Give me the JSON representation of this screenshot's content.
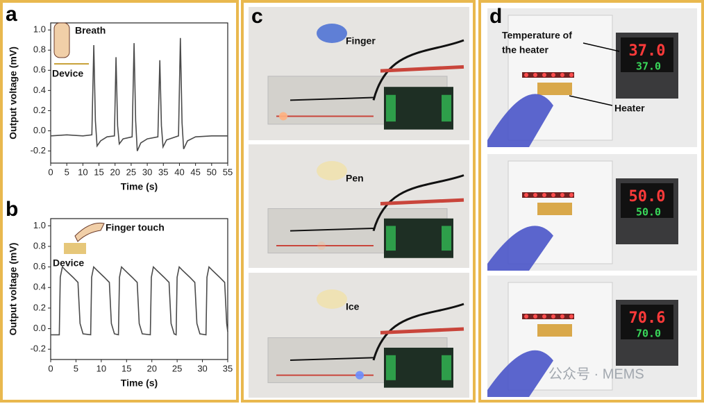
{
  "chart_data": [
    {
      "type": "line",
      "panel_label": "a",
      "x_label": "Time (s)",
      "y_label": "Output voltage (mV)",
      "annotations": [
        "Breath",
        "Device"
      ],
      "xlim": [
        0,
        55
      ],
      "xticks": [
        0,
        5,
        10,
        15,
        20,
        25,
        30,
        35,
        40,
        45,
        50,
        55
      ],
      "ylim": [
        -0.32,
        1.07
      ],
      "yticks": [
        -0.2,
        {
          "value": 0,
          "label": "0.0"
        },
        0.2,
        0.4,
        0.6,
        0.8,
        {
          "value": 1,
          "label": "1.0"
        }
      ],
      "x": [
        0,
        5,
        10,
        12.8,
        13.4,
        13.9,
        14.4,
        15.5,
        17.5,
        19.8,
        20.3,
        20.8,
        21.3,
        22.5,
        25.3,
        25.9,
        26.4,
        26.9,
        28,
        30,
        33.3,
        33.9,
        34.4,
        34.9,
        36,
        39.7,
        40.3,
        40.8,
        41.3,
        42.5,
        45,
        50,
        55
      ],
      "series": [
        {
          "color": "#4a4a4a",
          "values": [
            -0.05,
            -0.04,
            -0.05,
            -0.04,
            0.85,
            0.1,
            -0.15,
            -0.1,
            -0.06,
            -0.05,
            0.73,
            0.05,
            -0.13,
            -0.08,
            -0.06,
            0.87,
            0.1,
            -0.2,
            -0.12,
            -0.08,
            -0.06,
            0.7,
            0.05,
            -0.16,
            -0.09,
            -0.05,
            0.92,
            0.08,
            -0.18,
            -0.1,
            -0.06,
            -0.05,
            -0.05
          ]
        }
      ]
    },
    {
      "type": "line",
      "panel_label": "b",
      "x_label": "Time (s)",
      "y_label": "Output voltage (mV)",
      "annotations": [
        "Finger touch",
        "Device"
      ],
      "xlim": [
        0,
        35
      ],
      "xticks": [
        0,
        5,
        10,
        15,
        20,
        25,
        30,
        35
      ],
      "ylim": [
        -0.3,
        1.07
      ],
      "yticks": [
        -0.2,
        {
          "value": 0,
          "label": "0.0"
        },
        0.2,
        0.4,
        0.6,
        0.8,
        {
          "value": 1,
          "label": "1.0"
        }
      ],
      "x": [
        0,
        1.7,
        1.9,
        2.3,
        2.9,
        4.4,
        5.4,
        5.8,
        6.4,
        7.9,
        8.1,
        8.5,
        9.1,
        10.6,
        11.6,
        12,
        12.6,
        13.4,
        13.6,
        14,
        14.6,
        16.1,
        17.1,
        17.5,
        18.1,
        19.7,
        19.9,
        20.3,
        20.9,
        22.4,
        23.4,
        23.8,
        24.4,
        24.8,
        25,
        25.4,
        26,
        27.5,
        28.5,
        28.9,
        29.5,
        30.7,
        30.9,
        31.3,
        31.9,
        33.4,
        34.4,
        34.8,
        35
      ],
      "series": [
        {
          "color": "#4a4a4a",
          "values": [
            -0.06,
            -0.06,
            0.5,
            0.6,
            0.57,
            0.5,
            0.45,
            0.05,
            -0.05,
            -0.06,
            0.5,
            0.6,
            0.57,
            0.5,
            0.45,
            0.05,
            -0.05,
            -0.06,
            0.5,
            0.6,
            0.57,
            0.5,
            0.45,
            0.05,
            -0.05,
            -0.06,
            0.5,
            0.6,
            0.57,
            0.5,
            0.45,
            0.05,
            -0.05,
            -0.06,
            0.5,
            0.6,
            0.57,
            0.5,
            0.45,
            0.05,
            -0.05,
            -0.06,
            0.5,
            0.6,
            0.57,
            0.5,
            0.45,
            0.05,
            -0.03
          ]
        }
      ]
    }
  ],
  "panel_c": {
    "label": "c",
    "photos": [
      "Finger",
      "Pen",
      "Ice"
    ]
  },
  "panel_d": {
    "label": "d",
    "callout": [
      "Temperature of",
      "the heater"
    ],
    "heater": "Heater",
    "displays": [
      [
        "37.0",
        "37.0"
      ],
      [
        "50.0",
        "50.0"
      ],
      [
        "70.6",
        "70.0"
      ]
    ]
  },
  "watermark": "公众号 · MEMS"
}
